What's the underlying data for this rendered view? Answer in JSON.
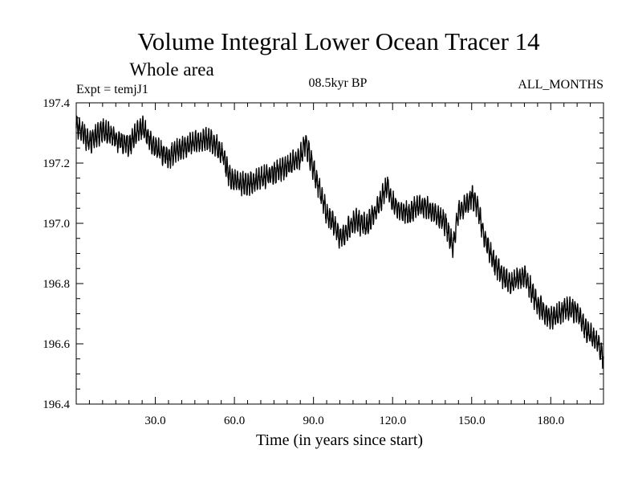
{
  "chart_data": {
    "type": "line",
    "title": "Volume Integral Lower Ocean Tracer 14",
    "subtitle": "Whole area",
    "expt_label": "Expt = temjJ1",
    "period_label": "08.5kyr BP",
    "months_label": "ALL_MONTHS",
    "xlabel": "Time (in years since start)",
    "ylabel": "",
    "xlim": [
      0,
      200
    ],
    "ylim": [
      196.4,
      197.4
    ],
    "x_ticks": [
      30,
      60,
      90,
      120,
      150,
      180
    ],
    "x_tick_labels": [
      "30.0",
      "60.0",
      "90.0",
      "120.0",
      "150.0",
      "180.0"
    ],
    "y_ticks": [
      196.4,
      196.6,
      196.8,
      197.0,
      197.2,
      197.4
    ],
    "y_tick_labels": [
      "196.4",
      "196.6",
      "196.8",
      "197.0",
      "197.2",
      "197.4"
    ],
    "series": [
      {
        "name": "Volume Integral Lower Ocean Tracer 14",
        "x": [
          0,
          5,
          10,
          15,
          20,
          25,
          30,
          35,
          40,
          45,
          50,
          53,
          56,
          58,
          60,
          65,
          70,
          75,
          80,
          85,
          87,
          90,
          92,
          95,
          98,
          100,
          103,
          106,
          110,
          115,
          118,
          120,
          123,
          126,
          130,
          135,
          140,
          143,
          145,
          148,
          150,
          152,
          155,
          158,
          160,
          162,
          165,
          170,
          172,
          175,
          178,
          180,
          183,
          186,
          190,
          193,
          196,
          198,
          200
        ],
        "y": [
          197.33,
          197.27,
          197.31,
          197.28,
          197.26,
          197.32,
          197.25,
          197.22,
          197.25,
          197.27,
          197.28,
          197.26,
          197.22,
          197.16,
          197.14,
          197.13,
          197.15,
          197.17,
          197.19,
          197.22,
          197.27,
          197.18,
          197.12,
          197.03,
          196.99,
          196.95,
          196.98,
          197.01,
          196.99,
          197.06,
          197.13,
          197.07,
          197.04,
          197.03,
          197.06,
          197.04,
          197.0,
          196.92,
          197.04,
          197.06,
          197.09,
          197.06,
          196.95,
          196.88,
          196.85,
          196.82,
          196.8,
          196.83,
          196.79,
          196.73,
          196.7,
          196.69,
          196.7,
          196.72,
          196.71,
          196.65,
          196.62,
          196.6,
          196.55
        ]
      }
    ],
    "noise_amplitude": 0.035,
    "legend": "none"
  }
}
